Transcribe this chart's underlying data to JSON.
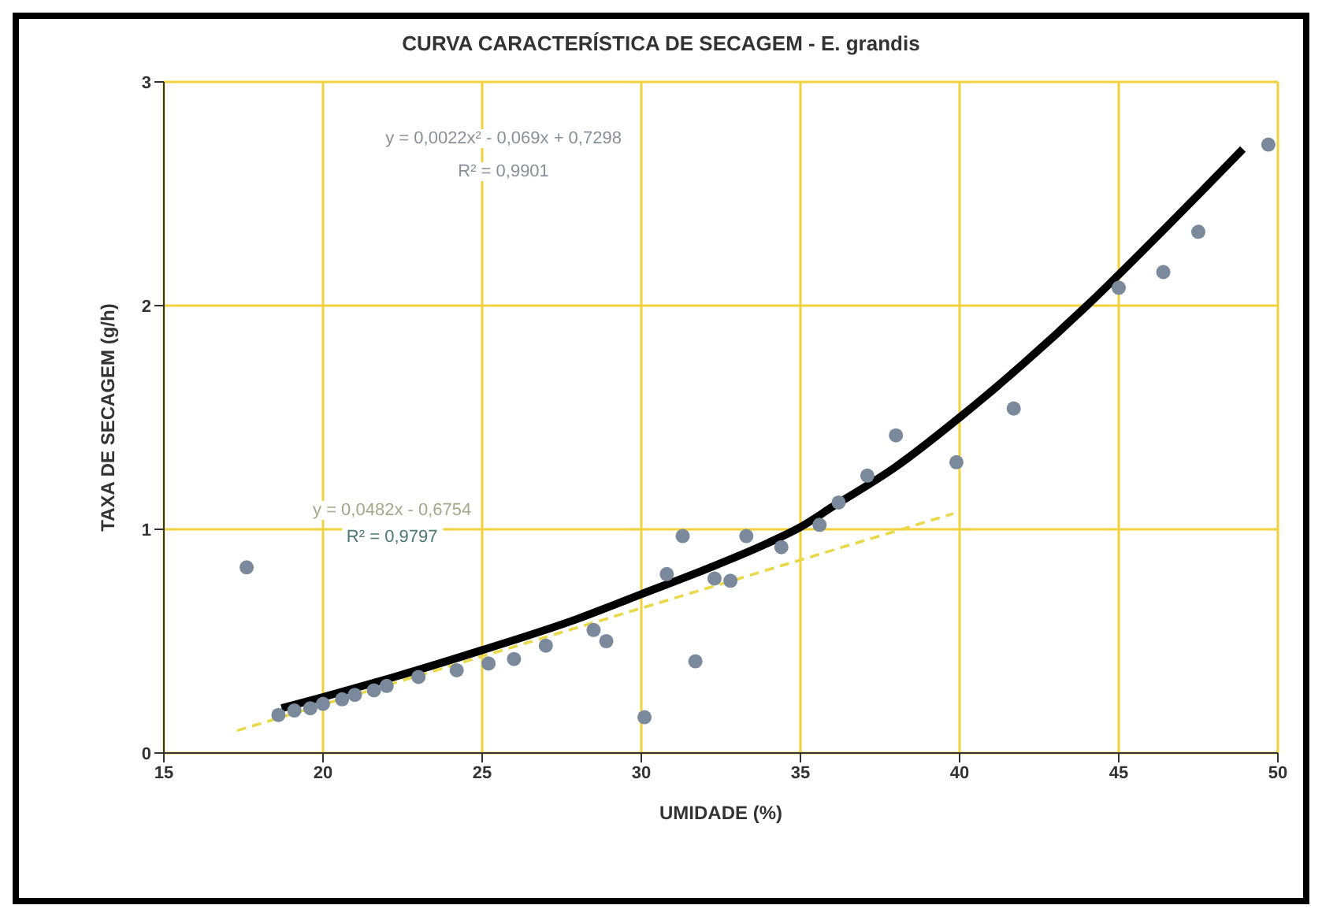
{
  "chart_data": {
    "type": "scatter",
    "title": "CURVA CARACTERÍSTICA DE SECAGEM - E. grandis",
    "xlabel": "UMIDADE (%)",
    "ylabel": "TAXA DE SECAGEM (g/h)",
    "xlim": [
      15,
      50
    ],
    "xticks": [
      15,
      20,
      25,
      30,
      35,
      40,
      45,
      50
    ],
    "ylim": [
      0,
      3
    ],
    "yticks": [
      0,
      1,
      2,
      3
    ],
    "grid": true,
    "series": [
      {
        "type": "scatter",
        "marker": "circle",
        "color": "#7a8a9c",
        "x": [
          17.6,
          18.6,
          19.1,
          19.6,
          20,
          20.6,
          21,
          21.6,
          22,
          23,
          24.2,
          25.2,
          26,
          27,
          28.5,
          28.9,
          30.1,
          30.8,
          31.3,
          31.7,
          32.3,
          32.8,
          33.3,
          34.4,
          35.6,
          36.2,
          37.1,
          38,
          39.9,
          41.7,
          45,
          46.4,
          47.5,
          49.7
        ],
        "values": [
          0.83,
          0.17,
          0.19,
          0.2,
          0.22,
          0.24,
          0.26,
          0.28,
          0.3,
          0.34,
          0.37,
          0.4,
          0.42,
          0.48,
          0.55,
          0.5,
          0.16,
          0.8,
          0.97,
          0.41,
          0.78,
          0.77,
          0.97,
          0.92,
          1.02,
          1.12,
          1.24,
          1.42,
          1.3,
          1.54,
          2.08,
          2.15,
          2.33,
          2.72
        ]
      },
      {
        "type": "line",
        "marker": "none",
        "color": "#000000",
        "x": [
          18.7,
          20,
          22,
          25,
          28,
          30,
          32,
          34,
          35,
          36,
          38,
          40,
          42,
          44,
          46,
          48.9
        ],
        "values": [
          0.2,
          0.25,
          0.33,
          0.46,
          0.6,
          0.71,
          0.82,
          0.94,
          1.01,
          1.1,
          1.28,
          1.5,
          1.74,
          2.0,
          2.28,
          2.7
        ]
      },
      {
        "type": "line",
        "marker": "none",
        "color": "#e8d84a",
        "line_style": "dashed",
        "x": [
          17.3,
          39.8
        ],
        "values": [
          0.1,
          1.07
        ]
      }
    ],
    "annotations": [
      "y = 0,0022x² - 0,069x + 0,7298",
      "R² = 0,9901",
      "y = 0,0482x - 0,6754",
      "R² = 0,9797"
    ]
  }
}
